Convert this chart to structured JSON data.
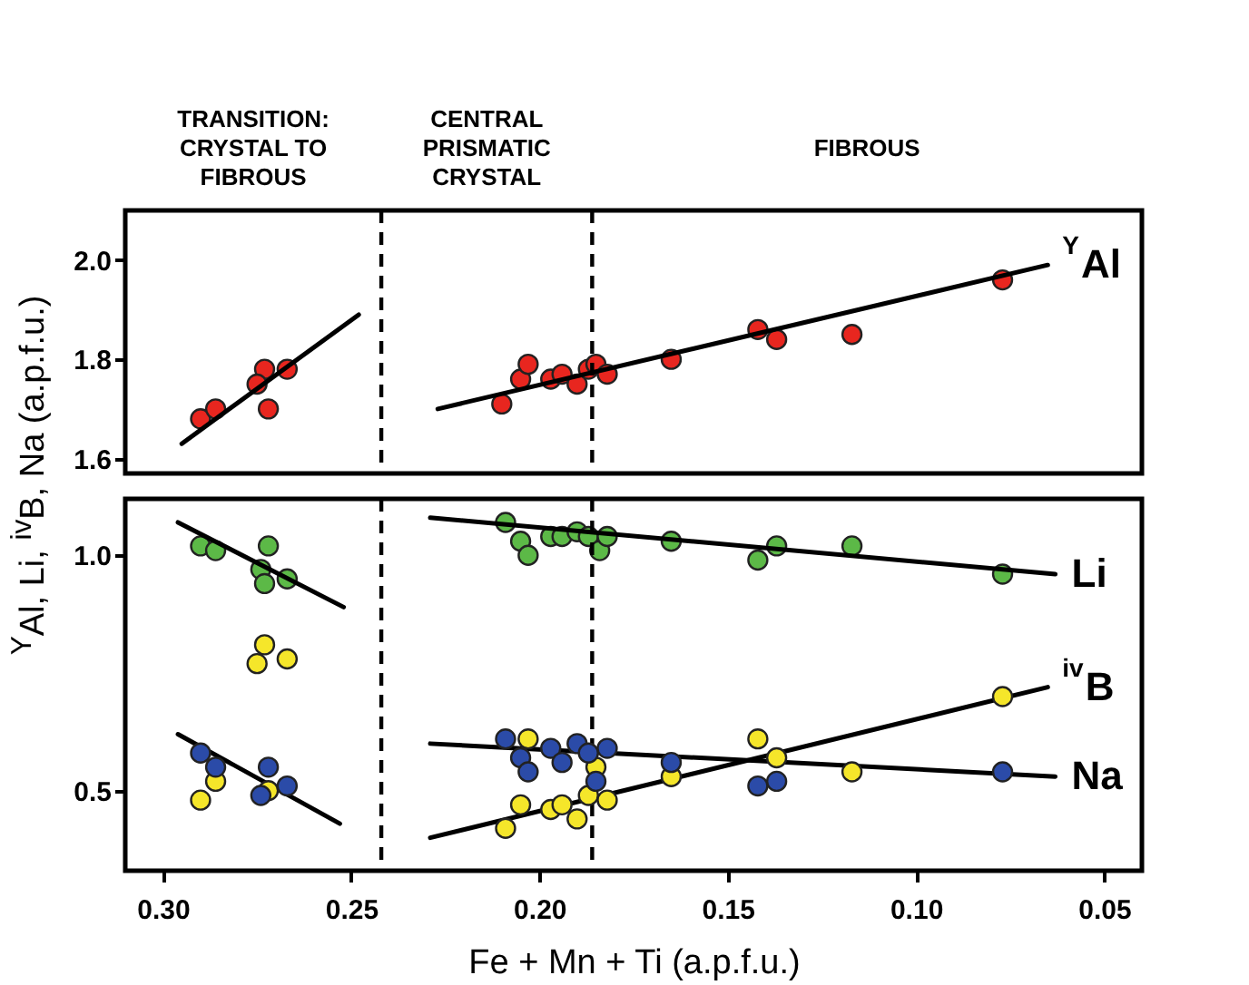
{
  "chart_data": [
    {
      "type": "scatter",
      "marker": "circle",
      "grid": false,
      "tick_labels": "y",
      "xlim": [
        0.31,
        0.04
      ],
      "ylim": [
        1.57,
        2.1
      ],
      "yticks": [
        1.6,
        1.8,
        {
          "value": 2.0,
          "label": "2.0"
        }
      ],
      "annotations": [
        "TRANSITION:\nCRYSTAL TO\nFIBROUS",
        "CENTRAL\nPRISMATIC\nCRYSTAL",
        "FIBROUS"
      ],
      "ref_lines": [
        {
          "axis": "x",
          "value": 0.242,
          "line_style": "dashed",
          "color": "#000000"
        },
        {
          "axis": "x",
          "value": 0.186,
          "line_style": "dashed",
          "color": "#000000"
        }
      ],
      "series": [
        {
          "name": "$^{Y}$Al",
          "color": "#e8261f",
          "x": [
            0.29,
            0.286,
            0.273,
            0.267,
            0.275,
            0.272,
            0.21,
            0.205,
            0.203,
            0.197,
            0.194,
            0.19,
            0.187,
            0.185,
            0.182,
            0.165,
            0.142,
            0.137,
            0.117,
            0.077
          ],
          "values": [
            1.68,
            1.7,
            1.78,
            1.78,
            1.75,
            1.7,
            1.71,
            1.76,
            1.79,
            1.76,
            1.77,
            1.75,
            1.78,
            1.79,
            1.77,
            1.8,
            1.86,
            1.84,
            1.85,
            1.96
          ]
        },
        {
          "type": "line",
          "marker": "none",
          "color": "#000000",
          "x": [
            0.295,
            0.248
          ],
          "values": [
            1.63,
            1.89
          ]
        },
        {
          "type": "line",
          "marker": "none",
          "color": "#000000",
          "x": [
            0.227,
            0.065
          ],
          "values": [
            1.7,
            1.99
          ]
        }
      ]
    },
    {
      "type": "scatter",
      "marker": "circle",
      "grid": false,
      "xlim": [
        0.31,
        0.04
      ],
      "ylim": [
        0.33,
        1.12
      ],
      "yticks": [
        {
          "value": 0.5,
          "label": "0.5"
        },
        {
          "value": 1.0,
          "label": "1.0"
        }
      ],
      "xticks": [
        {
          "value": 0.3,
          "label": "0.30"
        },
        0.25,
        {
          "value": 0.2,
          "label": "0.20"
        },
        0.15,
        {
          "value": 0.1,
          "label": "0.10"
        },
        0.05
      ],
      "xlabel": "Fe + Mn + Ti (a.p.f.u.)",
      "ylabel": "$^{Y}$Al, Li, $^{iv}$B, Na (a.p.f.u.)",
      "ref_lines": [
        {
          "axis": "x",
          "value": 0.242,
          "line_style": "dashed",
          "color": "#000000"
        },
        {
          "axis": "x",
          "value": 0.186,
          "line_style": "dashed",
          "color": "#000000"
        }
      ],
      "series": [
        {
          "name": "Li",
          "color": "#5cb947",
          "x": [
            0.29,
            0.286,
            0.272,
            0.274,
            0.273,
            0.267,
            0.209,
            0.205,
            0.203,
            0.197,
            0.194,
            0.19,
            0.187,
            0.184,
            0.182,
            0.165,
            0.142,
            0.137,
            0.117,
            0.077
          ],
          "values": [
            1.02,
            1.01,
            1.02,
            0.97,
            0.94,
            0.95,
            1.07,
            1.03,
            1.0,
            1.04,
            1.04,
            1.05,
            1.04,
            1.01,
            1.04,
            1.03,
            0.99,
            1.02,
            1.02,
            0.96
          ]
        },
        {
          "name": "$^{iv}$B",
          "color": "#f5e62a",
          "x": [
            0.273,
            0.275,
            0.267,
            0.286,
            0.29,
            0.272,
            0.203,
            0.209,
            0.205,
            0.197,
            0.194,
            0.19,
            0.185,
            0.187,
            0.182,
            0.165,
            0.142,
            0.137,
            0.117,
            0.077
          ],
          "values": [
            0.81,
            0.77,
            0.78,
            0.52,
            0.48,
            0.5,
            0.61,
            0.42,
            0.47,
            0.46,
            0.47,
            0.44,
            0.55,
            0.49,
            0.48,
            0.53,
            0.61,
            0.57,
            0.54,
            0.7
          ]
        },
        {
          "name": "Na",
          "color": "#2b4ba8",
          "x": [
            0.29,
            0.286,
            0.272,
            0.274,
            0.267,
            0.209,
            0.205,
            0.203,
            0.197,
            0.194,
            0.19,
            0.187,
            0.182,
            0.185,
            0.165,
            0.142,
            0.137,
            0.077
          ],
          "values": [
            0.58,
            0.55,
            0.55,
            0.49,
            0.51,
            0.61,
            0.57,
            0.54,
            0.59,
            0.56,
            0.6,
            0.58,
            0.59,
            0.52,
            0.56,
            0.51,
            0.52,
            0.54
          ]
        },
        {
          "type": "line",
          "marker": "none",
          "color": "#000000",
          "x": [
            0.296,
            0.252
          ],
          "values": [
            1.07,
            0.89
          ]
        },
        {
          "type": "line",
          "marker": "none",
          "color": "#000000",
          "x": [
            0.229,
            0.063
          ],
          "values": [
            1.08,
            0.96
          ]
        },
        {
          "type": "line",
          "marker": "none",
          "color": "#000000",
          "x": [
            0.296,
            0.253
          ],
          "values": [
            0.62,
            0.43
          ]
        },
        {
          "type": "line",
          "marker": "none",
          "color": "#000000",
          "x": [
            0.229,
            0.063
          ],
          "values": [
            0.6,
            0.53
          ]
        },
        {
          "type": "line",
          "marker": "none",
          "color": "#000000",
          "x": [
            0.229,
            0.065
          ],
          "values": [
            0.4,
            0.72
          ]
        }
      ]
    }
  ]
}
